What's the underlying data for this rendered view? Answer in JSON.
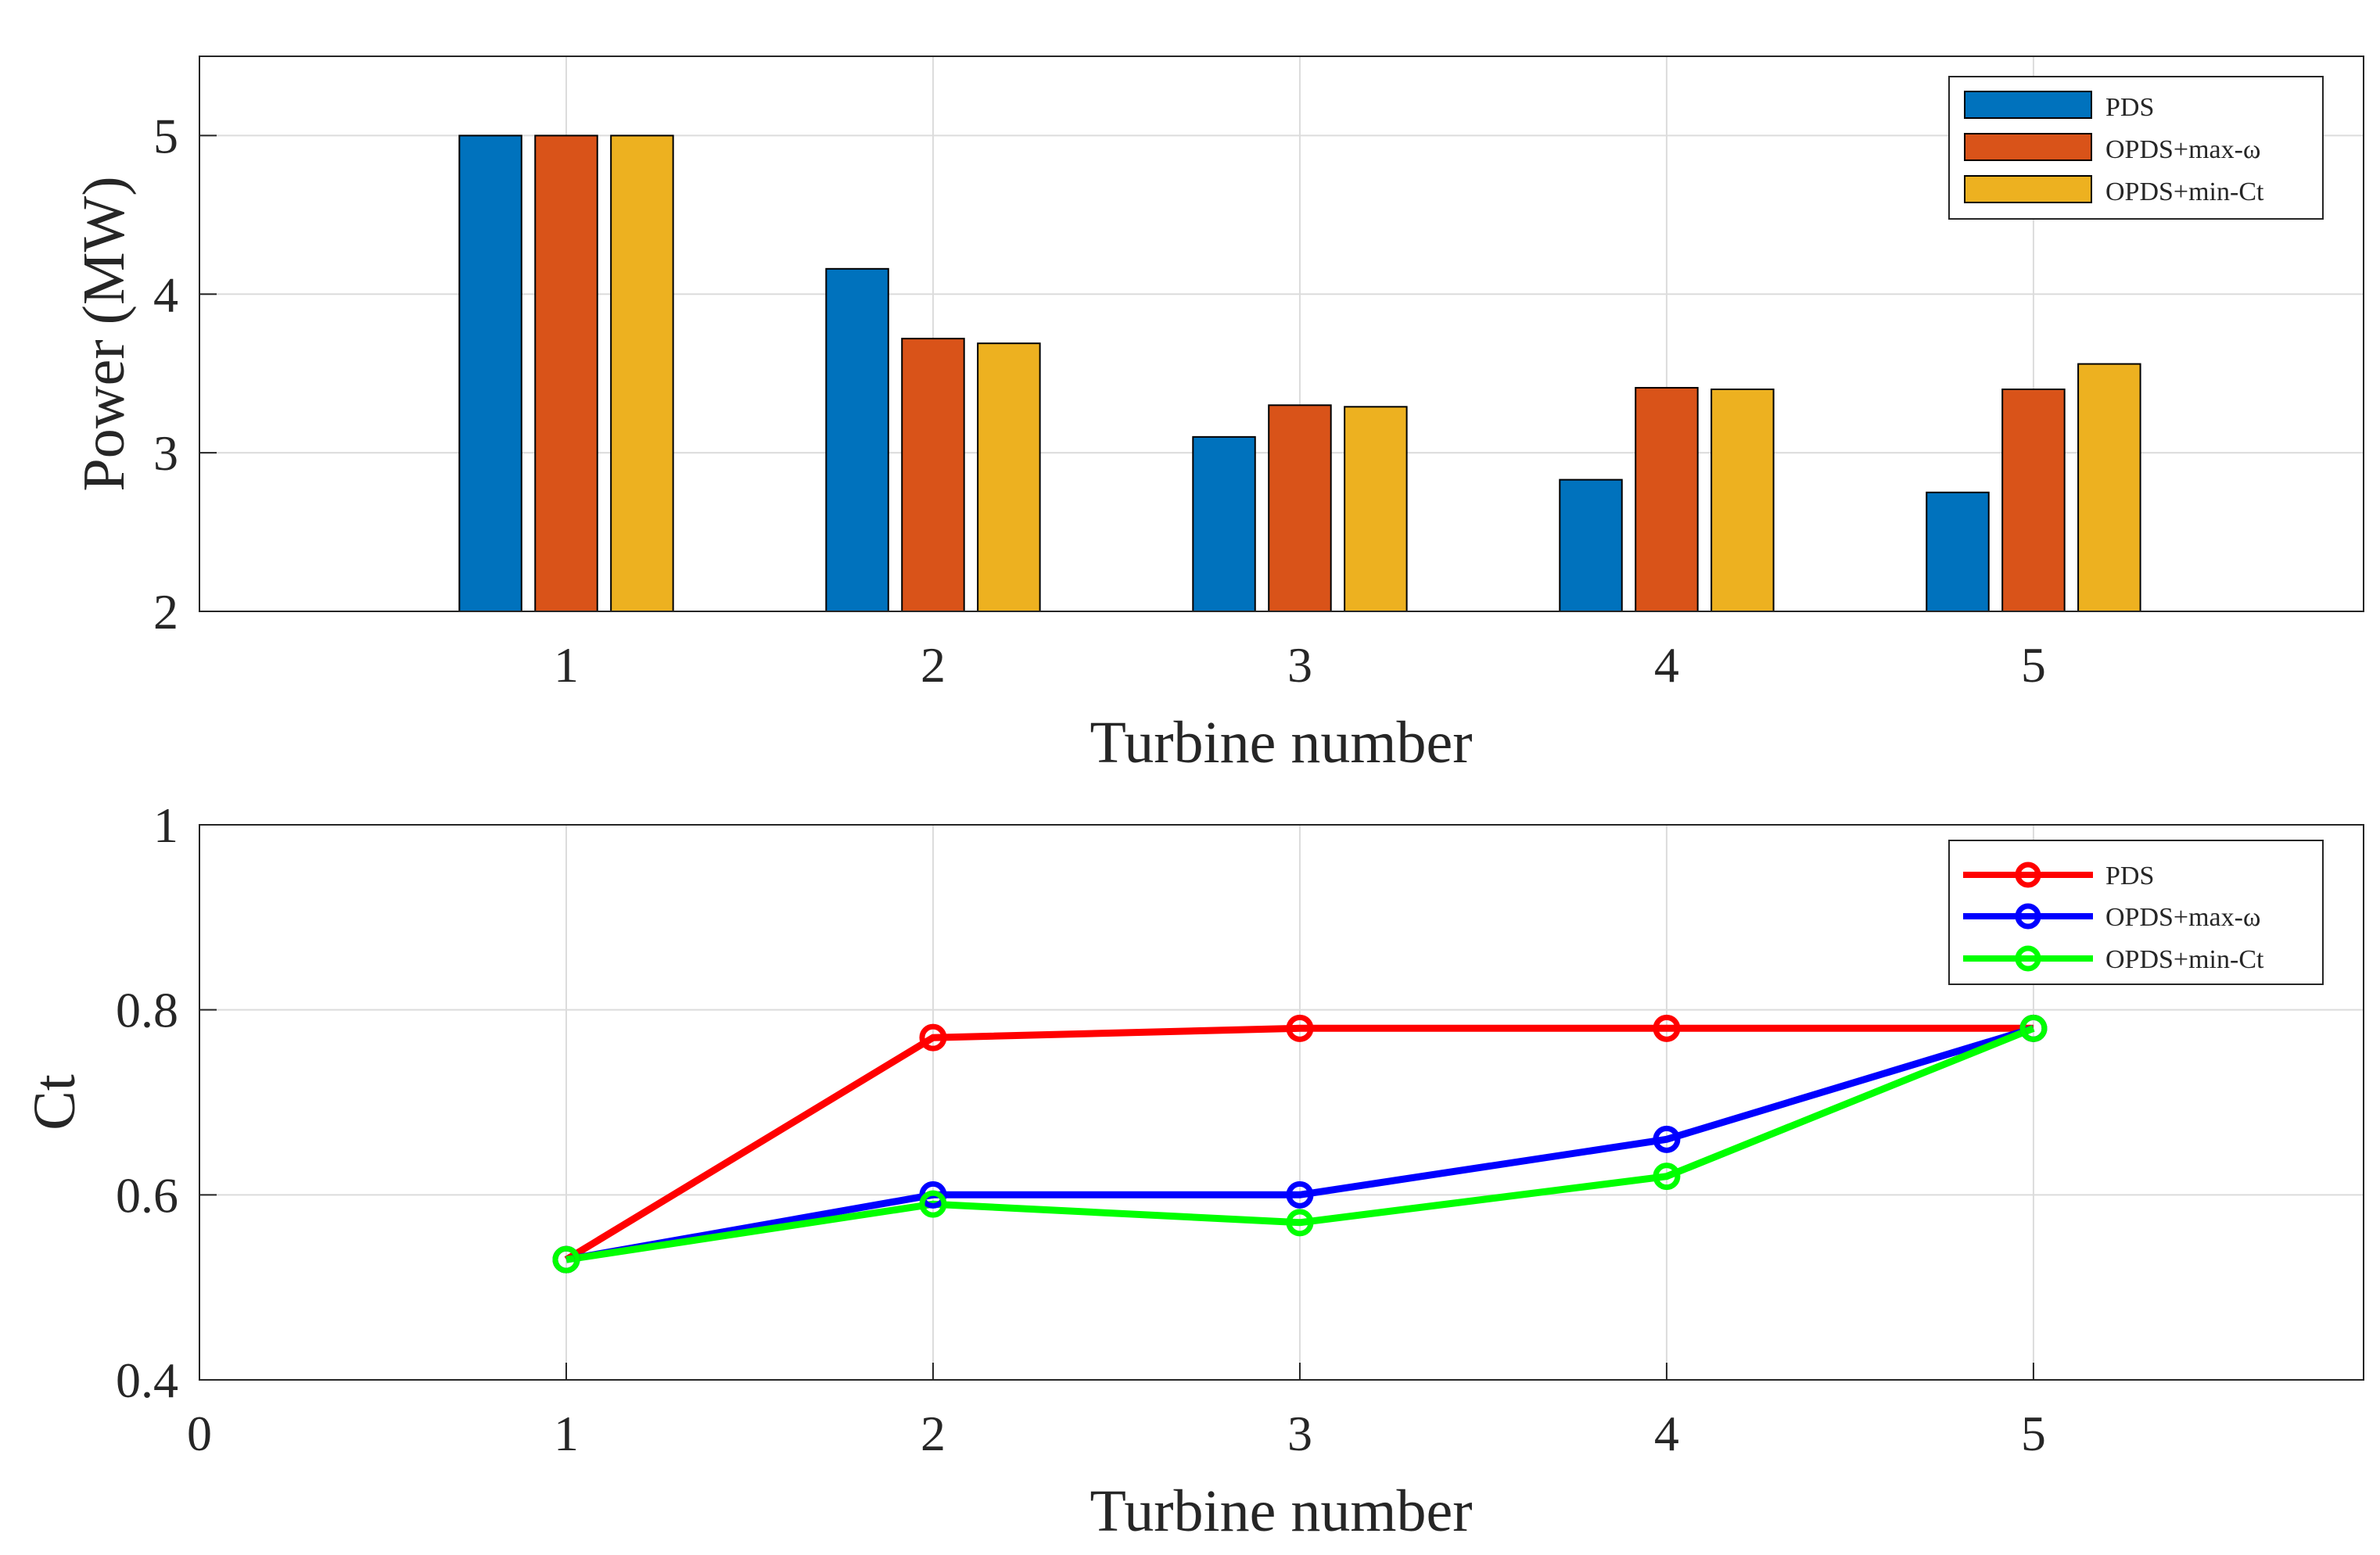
{
  "chart_data": [
    {
      "type": "bar",
      "xlabel": "Turbine number",
      "ylabel": "Power (MW)",
      "xlim": [
        0,
        5.9
      ],
      "ylim": [
        2,
        5.5
      ],
      "xticks": [
        "1",
        "2",
        "3",
        "4",
        "5"
      ],
      "yticks": [
        "2",
        "3",
        "4",
        "5"
      ],
      "categories": [
        1,
        2,
        3,
        4,
        5
      ],
      "grid": true,
      "legend_position": "top-right",
      "series": [
        {
          "name": "PDS",
          "color": "#0072BD",
          "values": [
            5.0,
            4.16,
            3.1,
            2.83,
            2.75
          ]
        },
        {
          "name": "OPDS+max-ω",
          "color": "#D95319",
          "values": [
            5.0,
            3.72,
            3.3,
            3.41,
            3.4
          ]
        },
        {
          "name": "OPDS+min-Ct",
          "color": "#EDB120",
          "values": [
            5.0,
            3.69,
            3.29,
            3.4,
            3.56
          ]
        }
      ]
    },
    {
      "type": "line",
      "xlabel": "Turbine number",
      "ylabel": "Ct",
      "xlim": [
        0,
        5.9
      ],
      "ylim": [
        0.4,
        1.0
      ],
      "xticks": [
        "0",
        "1",
        "2",
        "3",
        "4",
        "5"
      ],
      "yticks": [
        "0.4",
        "0.6",
        "0.8",
        "1"
      ],
      "x": [
        1,
        2,
        3,
        4,
        5
      ],
      "grid": true,
      "legend_position": "top-right",
      "series": [
        {
          "name": "PDS",
          "color": "#FF0000",
          "values": [
            0.53,
            0.77,
            0.78,
            0.78,
            0.78
          ]
        },
        {
          "name": "OPDS+max-ω",
          "color": "#0000FF",
          "values": [
            0.53,
            0.6,
            0.6,
            0.66,
            0.78
          ]
        },
        {
          "name": "OPDS+min-Ct",
          "color": "#00FF00",
          "values": [
            0.53,
            0.59,
            0.57,
            0.62,
            0.78
          ]
        }
      ]
    }
  ]
}
